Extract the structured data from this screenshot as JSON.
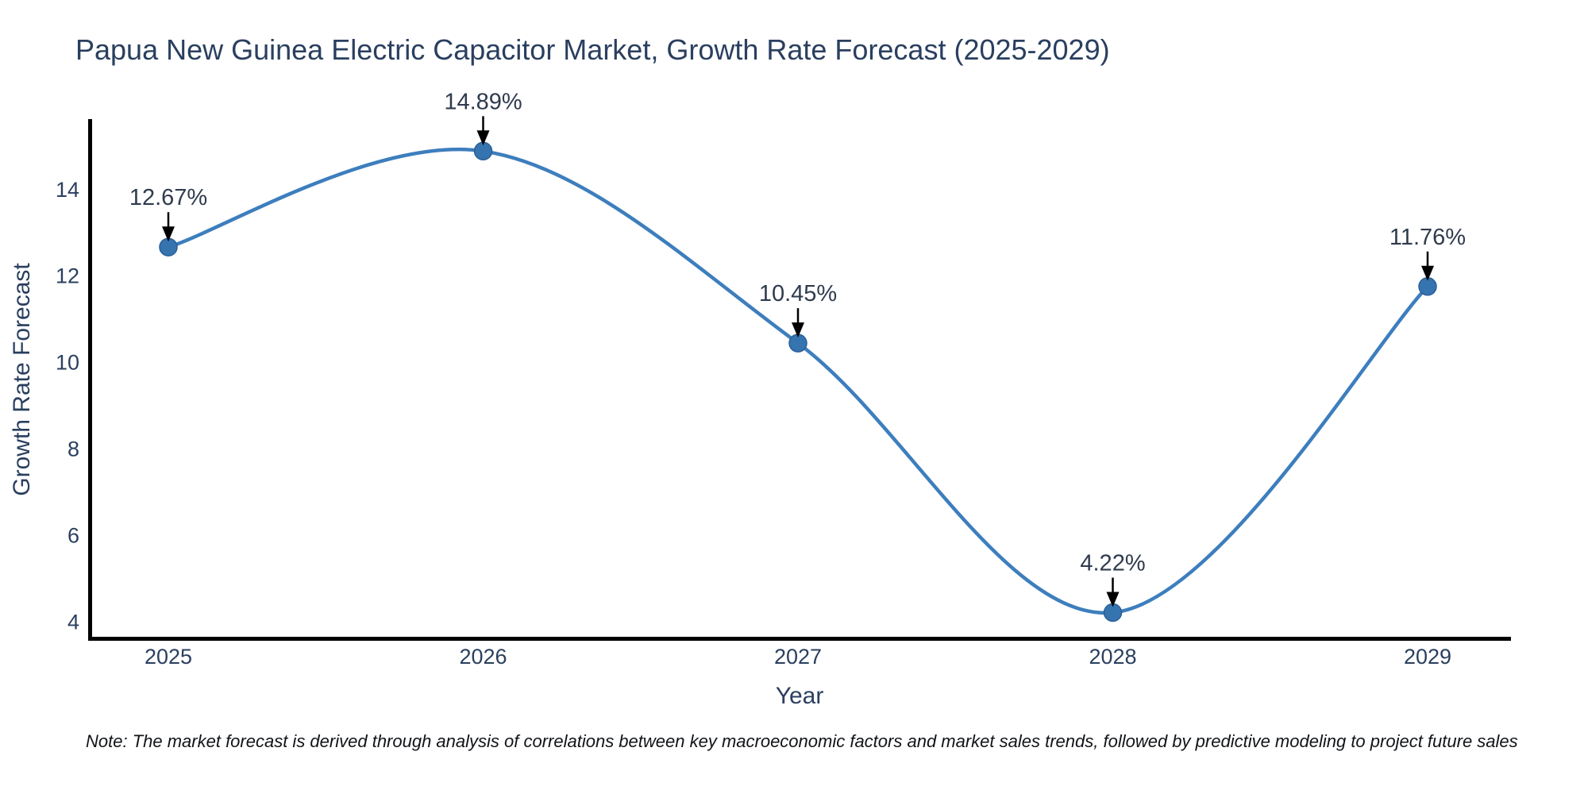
{
  "chart_data": {
    "type": "line",
    "title": "Papua New Guinea Electric Capacitor Market, Growth Rate Forecast (2025-2029)",
    "xlabel": "Year",
    "ylabel": "Growth Rate Forecast",
    "categories": [
      "2025",
      "2026",
      "2027",
      "2028",
      "2029"
    ],
    "values": [
      12.67,
      14.89,
      10.45,
      4.22,
      11.76
    ],
    "point_labels": [
      "12.67%",
      "14.89%",
      "10.45%",
      "4.22%",
      "11.76%"
    ],
    "yticks": [
      4,
      6,
      8,
      10,
      12,
      14
    ],
    "ylim": [
      3.66,
      15.63
    ],
    "line_shape": "spline",
    "grid": false,
    "legend": "none",
    "colors": {
      "line": "#3d7ebd",
      "marker_fill": "#3674b0",
      "marker_edge": "#2b5f96",
      "axis": "#000000",
      "text": "#2a3f5f",
      "annotation_arrow": "#000000",
      "background": "#ffffff"
    }
  },
  "footnote": "Note: The market forecast is derived through analysis of correlations between key macroeconomic factors and market sales trends, followed by predictive modeling to project future sales"
}
